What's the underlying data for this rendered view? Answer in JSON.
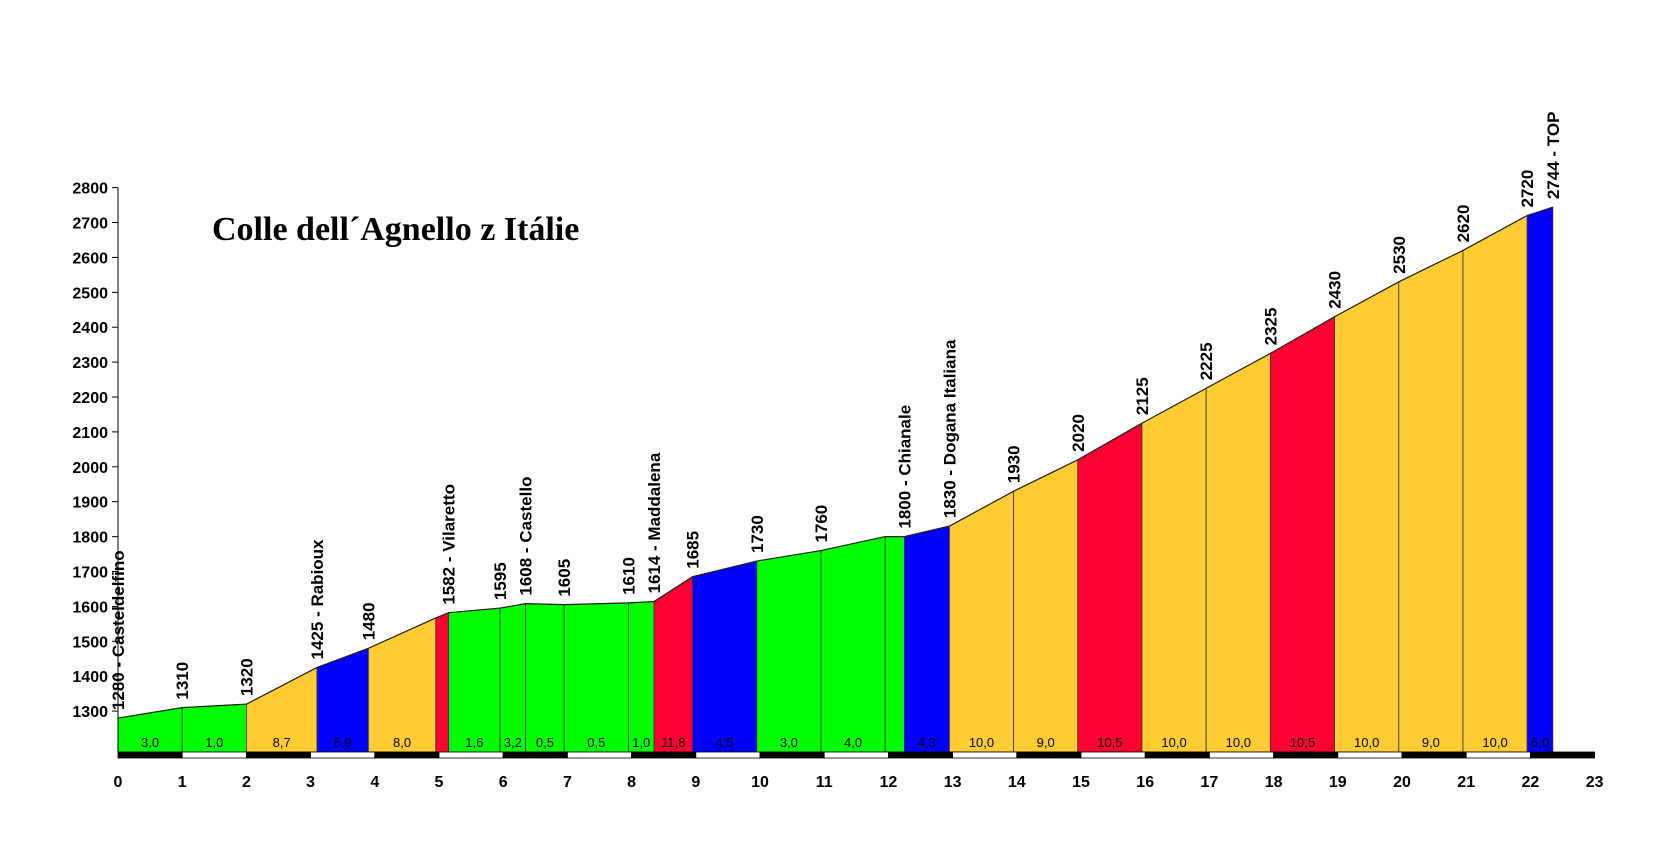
{
  "chart_data": {
    "type": "area",
    "title": "Colle dell´Agnello z Itálie",
    "xlabel": "",
    "ylabel": "",
    "xlim": [
      0,
      23
    ],
    "ylim": [
      1200,
      2800
    ],
    "x_ticks": [
      0,
      1,
      2,
      3,
      4,
      5,
      6,
      7,
      8,
      9,
      10,
      11,
      12,
      13,
      14,
      15,
      16,
      17,
      18,
      19,
      20,
      21,
      22,
      23
    ],
    "y_ticks": [
      1300,
      1400,
      1500,
      1600,
      1700,
      1800,
      1900,
      2000,
      2100,
      2200,
      2300,
      2400,
      2500,
      2600,
      2700,
      2800
    ],
    "colors": {
      "green": "#00ff00",
      "yellow": "#ffcc33",
      "blue": "#0000ff",
      "red": "#ff0033"
    },
    "profile": [
      {
        "x": 0,
        "y": 1280
      },
      {
        "x": 1,
        "y": 1310
      },
      {
        "x": 2,
        "y": 1320
      },
      {
        "x": 3.1,
        "y": 1425
      },
      {
        "x": 3.9,
        "y": 1480
      },
      {
        "x": 4.95,
        "y": 1567
      },
      {
        "x": 5.15,
        "y": 1582
      },
      {
        "x": 5.95,
        "y": 1595
      },
      {
        "x": 6.35,
        "y": 1608
      },
      {
        "x": 6.95,
        "y": 1605
      },
      {
        "x": 7.95,
        "y": 1610
      },
      {
        "x": 8.35,
        "y": 1614
      },
      {
        "x": 8.95,
        "y": 1685
      },
      {
        "x": 9.95,
        "y": 1730
      },
      {
        "x": 10.95,
        "y": 1760
      },
      {
        "x": 11.95,
        "y": 1800
      },
      {
        "x": 12.25,
        "y": 1800
      },
      {
        "x": 12.95,
        "y": 1830
      },
      {
        "x": 13.95,
        "y": 1930
      },
      {
        "x": 14.95,
        "y": 2020
      },
      {
        "x": 15.95,
        "y": 2125
      },
      {
        "x": 16.95,
        "y": 2225
      },
      {
        "x": 17.95,
        "y": 2325
      },
      {
        "x": 18.95,
        "y": 2430
      },
      {
        "x": 19.95,
        "y": 2530
      },
      {
        "x": 20.95,
        "y": 2620
      },
      {
        "x": 21.95,
        "y": 2720
      },
      {
        "x": 22.35,
        "y": 2744
      }
    ],
    "segments": [
      {
        "color": "green",
        "gradient": "3,0"
      },
      {
        "color": "green",
        "gradient": "1,0"
      },
      {
        "color": "yellow",
        "gradient": "8,7"
      },
      {
        "color": "blue",
        "gradient": "6,9"
      },
      {
        "color": "yellow",
        "gradient": "8,0"
      },
      {
        "color": "red",
        "gradient": ""
      },
      {
        "color": "green",
        "gradient": "1,6"
      },
      {
        "color": "green",
        "gradient": "3,2"
      },
      {
        "color": "green",
        "gradient": "0,5"
      },
      {
        "color": "green",
        "gradient": "0,5"
      },
      {
        "color": "green",
        "gradient": "1,0"
      },
      {
        "color": "red",
        "gradient": "11,8"
      },
      {
        "color": "blue",
        "gradient": "4,5"
      },
      {
        "color": "green",
        "gradient": "3,0"
      },
      {
        "color": "green",
        "gradient": "4,0"
      },
      {
        "color": "green",
        "gradient": ""
      },
      {
        "color": "blue",
        "gradient": "4,3"
      },
      {
        "color": "yellow",
        "gradient": "10,0"
      },
      {
        "color": "yellow",
        "gradient": "9,0"
      },
      {
        "color": "red",
        "gradient": "10,5"
      },
      {
        "color": "yellow",
        "gradient": "10,0"
      },
      {
        "color": "yellow",
        "gradient": "10,0"
      },
      {
        "color": "red",
        "gradient": "10,5"
      },
      {
        "color": "yellow",
        "gradient": "10,0"
      },
      {
        "color": "yellow",
        "gradient": "9,0"
      },
      {
        "color": "yellow",
        "gradient": "10,0"
      },
      {
        "color": "blue",
        "gradient": "6,0"
      }
    ],
    "annotations": [
      {
        "x": 0,
        "y": 1280,
        "text": "1280 - Casteldelfino"
      },
      {
        "x": 1,
        "y": 1310,
        "text": "1310"
      },
      {
        "x": 2,
        "y": 1320,
        "text": "1320"
      },
      {
        "x": 3.1,
        "y": 1425,
        "text": "1425 - Rabioux"
      },
      {
        "x": 3.9,
        "y": 1480,
        "text": "1480"
      },
      {
        "x": 5.15,
        "y": 1582,
        "text": "1582 - Vilaretto"
      },
      {
        "x": 5.95,
        "y": 1595,
        "text": "1595"
      },
      {
        "x": 6.35,
        "y": 1608,
        "text": "1608 - Castello"
      },
      {
        "x": 6.95,
        "y": 1605,
        "text": "1605"
      },
      {
        "x": 7.95,
        "y": 1610,
        "text": "1610"
      },
      {
        "x": 8.35,
        "y": 1614,
        "text": "1614 - Maddalena"
      },
      {
        "x": 8.95,
        "y": 1685,
        "text": "1685"
      },
      {
        "x": 9.95,
        "y": 1730,
        "text": "1730"
      },
      {
        "x": 10.95,
        "y": 1760,
        "text": "1760"
      },
      {
        "x": 12.25,
        "y": 1800,
        "text": "1800 - Chianale"
      },
      {
        "x": 12.95,
        "y": 1830,
        "text": "1830 - Dogana Italiana"
      },
      {
        "x": 13.95,
        "y": 1930,
        "text": "1930"
      },
      {
        "x": 14.95,
        "y": 2020,
        "text": "2020"
      },
      {
        "x": 15.95,
        "y": 2125,
        "text": "2125"
      },
      {
        "x": 16.95,
        "y": 2225,
        "text": "2225"
      },
      {
        "x": 17.95,
        "y": 2325,
        "text": "2325"
      },
      {
        "x": 18.95,
        "y": 2430,
        "text": "2430"
      },
      {
        "x": 19.95,
        "y": 2530,
        "text": "2530"
      },
      {
        "x": 20.95,
        "y": 2620,
        "text": "2620"
      },
      {
        "x": 21.95,
        "y": 2720,
        "text": "2720"
      },
      {
        "x": 22.35,
        "y": 2744,
        "text": "2744 - TOP"
      }
    ]
  }
}
